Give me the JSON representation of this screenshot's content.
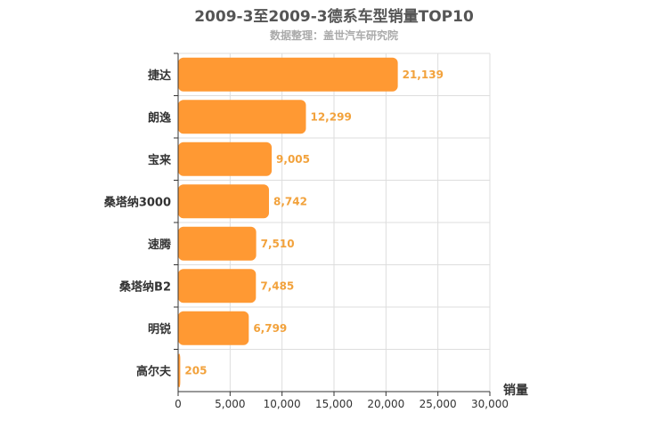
{
  "header": {
    "title": "2009-3至2009-3德系车型销量TOP10",
    "subtitle": "数据整理：盖世汽车研究院"
  },
  "colors": {
    "bar": "#ff9933",
    "value_label": "#f2a23c",
    "grid": "#dddddd",
    "axis": "#333333"
  },
  "chart_data": {
    "type": "bar",
    "orientation": "horizontal",
    "title": "2009-3至2009-3德系车型销量TOP10",
    "subtitle": "数据整理：盖世汽车研究院",
    "xlabel": "销量",
    "ylabel": "",
    "xlim": [
      0,
      30000
    ],
    "ticks": [
      0,
      5000,
      10000,
      15000,
      20000,
      25000,
      30000
    ],
    "tick_labels": [
      "0",
      "5,000",
      "10,000",
      "15,000",
      "20,000",
      "25,000",
      "30,000"
    ],
    "grid": true,
    "categories": [
      "捷达",
      "朗逸",
      "宝来",
      "桑塔纳3000",
      "速腾",
      "桑塔纳B2",
      "明锐",
      "高尔夫"
    ],
    "values": [
      21139,
      12299,
      9005,
      8742,
      7510,
      7485,
      6799,
      205
    ],
    "value_labels": [
      "21,139",
      "12,299",
      "9,005",
      "8,742",
      "7,510",
      "7,485",
      "6,799",
      "205"
    ]
  }
}
